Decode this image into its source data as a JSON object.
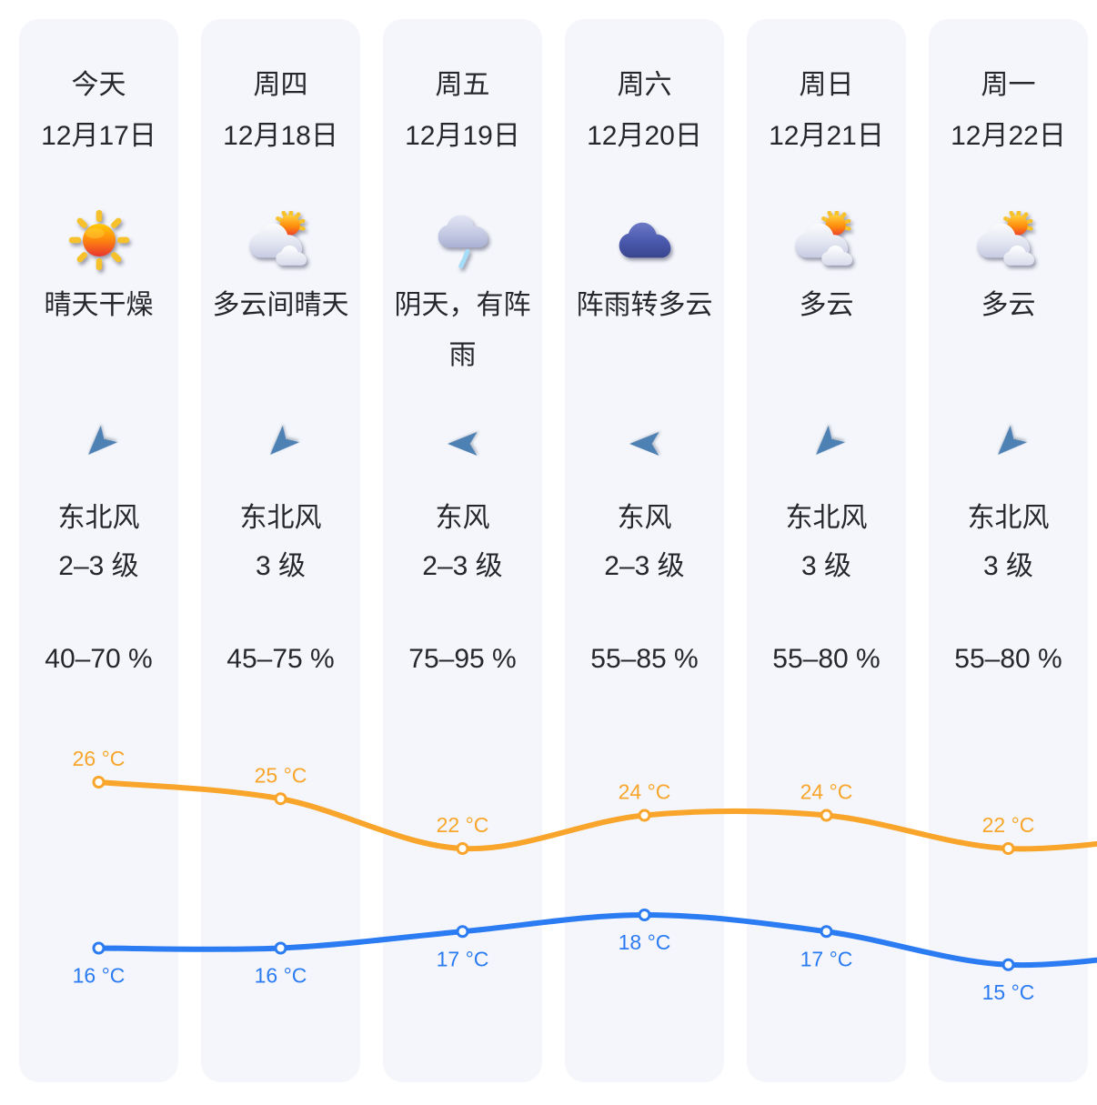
{
  "page": {
    "background": "#FFFFFF",
    "card_background": "#F4F6FB",
    "text_color": "#26262C",
    "wind_arrow_color": "#4E81B3"
  },
  "columns": [
    {
      "day": "今天",
      "date": "12月17日",
      "icon": "sunny",
      "desc": "晴天干燥",
      "wind_dir": "东北风",
      "wind_level": "2–3 级",
      "humidity": "40–70 %",
      "wind_deg": 225
    },
    {
      "day": "周四",
      "date": "12月18日",
      "icon": "partly-cloudy",
      "desc": "多云间晴天",
      "wind_dir": "东北风",
      "wind_level": "3 级",
      "humidity": "45–75 %",
      "wind_deg": 225
    },
    {
      "day": "周五",
      "date": "12月19日",
      "icon": "overcast-rain",
      "desc": "阴天，有阵雨",
      "wind_dir": "东风",
      "wind_level": "2–3 级",
      "humidity": "75–95 %",
      "wind_deg": 270
    },
    {
      "day": "周六",
      "date": "12月20日",
      "icon": "cloudy-dark",
      "desc": "阵雨转多云",
      "wind_dir": "东风",
      "wind_level": "2–3 级",
      "humidity": "55–85 %",
      "wind_deg": 270
    },
    {
      "day": "周日",
      "date": "12月21日",
      "icon": "partly-cloudy",
      "desc": "多云",
      "wind_dir": "东北风",
      "wind_level": "3 级",
      "humidity": "55–80 %",
      "wind_deg": 225
    },
    {
      "day": "周一",
      "date": "12月22日",
      "icon": "partly-cloudy",
      "desc": "多云",
      "wind_dir": "东北风",
      "wind_level": "3 级",
      "humidity": "55–80 %",
      "wind_deg": 225
    }
  ],
  "chart_data": {
    "type": "line",
    "categories": [
      "今天",
      "周四",
      "周五",
      "周六",
      "周日",
      "周一"
    ],
    "x_dates": [
      "12月17日",
      "12月18日",
      "12月19日",
      "12月20日",
      "12月21日",
      "12月22日"
    ],
    "unit": "°C",
    "series": [
      {
        "name": "high",
        "values": [
          26,
          25,
          22,
          24,
          24,
          22
        ],
        "labels": [
          "26 °C",
          "25 °C",
          "22 °C",
          "24 °C",
          "24 °C",
          "22 °C"
        ],
        "color": "#F9A52B",
        "label_position": "above"
      },
      {
        "name": "low",
        "values": [
          16,
          16,
          17,
          18,
          17,
          15
        ],
        "labels": [
          "16 °C",
          "16 °C",
          "17 °C",
          "18 °C",
          "17 °C",
          "15 °C"
        ],
        "color": "#2B7BF2",
        "label_position": "below"
      }
    ],
    "ylim": [
      14,
      27
    ],
    "grid": false,
    "legend": false,
    "smooth": true
  }
}
